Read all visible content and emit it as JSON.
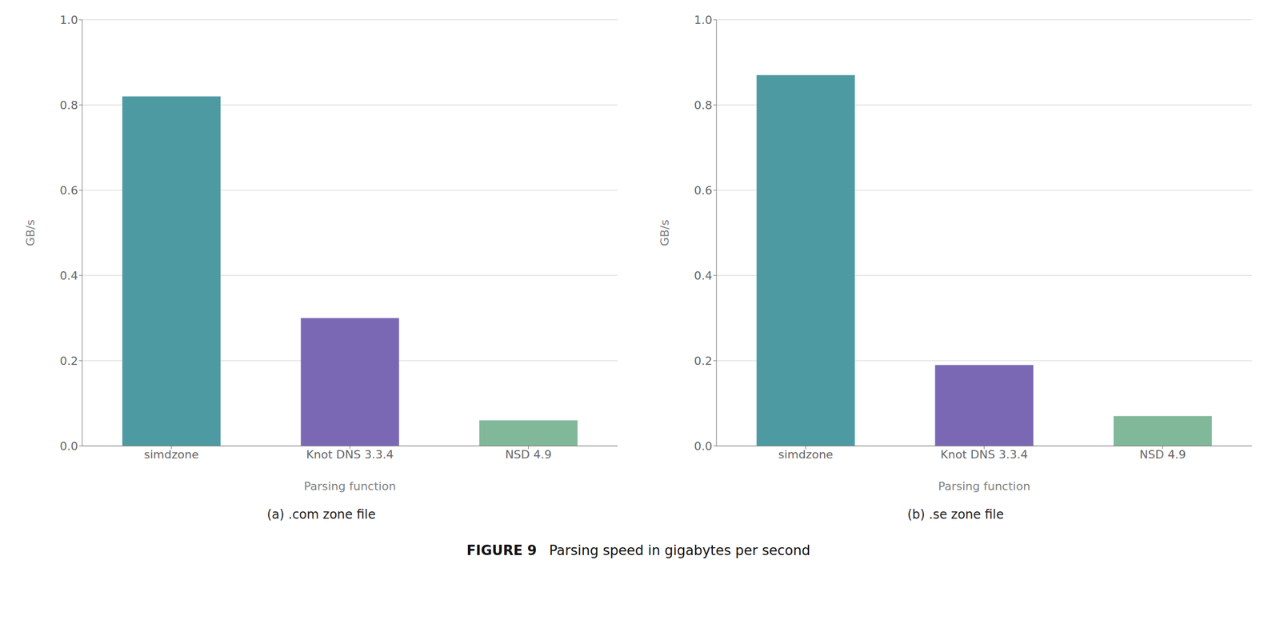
{
  "title": "FIGURE 9",
  "subtitle": "Parsing speed in gigabytes per second",
  "chart_data": [
    {
      "type": "bar",
      "title": "(a) .com zone file",
      "categories": [
        "simdzone",
        "Knot DNS 3.3.4",
        "NSD 4.9"
      ],
      "values": [
        0.82,
        0.3,
        0.06
      ],
      "colors": [
        "#4e9aa3",
        "#7b68b5",
        "#82b89a"
      ],
      "xlabel": "Parsing function",
      "ylabel": "GB/s",
      "ylim": [
        0,
        1.0
      ],
      "yticks": [
        {
          "value": 0,
          "label": "0.0"
        },
        0.2,
        0.4,
        0.6,
        0.8,
        {
          "value": 1,
          "label": "1.0"
        }
      ],
      "grid": true
    },
    {
      "type": "bar",
      "title": "(b) .se zone file",
      "categories": [
        "simdzone",
        "Knot DNS 3.3.4",
        "NSD 4.9"
      ],
      "values": [
        0.87,
        0.19,
        0.07
      ],
      "colors": [
        "#4e9aa3",
        "#7b68b5",
        "#82b89a"
      ],
      "xlabel": "Parsing function",
      "ylabel": "GB/s",
      "ylim": [
        0,
        1.0
      ],
      "yticks": [
        {
          "value": 0,
          "label": "0.0"
        },
        0.2,
        0.4,
        0.6,
        0.8,
        {
          "value": 1,
          "label": "1.0"
        }
      ],
      "grid": true
    }
  ]
}
